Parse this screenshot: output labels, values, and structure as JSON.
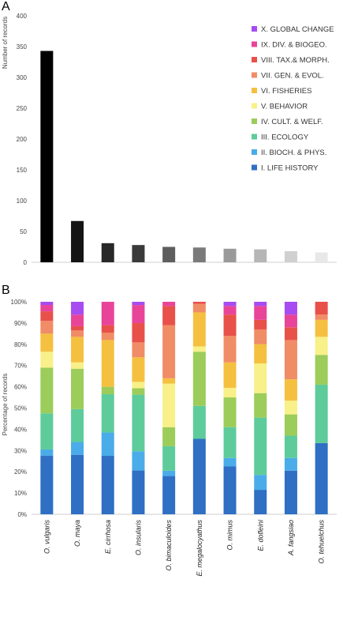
{
  "panels": {
    "a_label": "A",
    "b_label": "B"
  },
  "chart_data": [
    {
      "type": "bar",
      "title": "",
      "xlabel": "",
      "ylabel": "Number of records",
      "ylim": [
        0,
        400
      ],
      "yticks": [
        0,
        50,
        100,
        150,
        200,
        250,
        300,
        350,
        400
      ],
      "grid": false,
      "categories": [
        "O. vulgaris",
        "O. maya",
        "E. cirrhosa",
        "O. insularis",
        "O. bimaculoides",
        "E. megalocyathus",
        "O. mimus",
        "E. dofleini",
        "A. fangsiao",
        "O. tehuelchus"
      ],
      "values": [
        343,
        67,
        31,
        28,
        25,
        24,
        22,
        21,
        18,
        16
      ],
      "bar_colors": [
        "#000000",
        "#141414",
        "#282828",
        "#3a3a3a",
        "#5e5e5e",
        "#7a7a7a",
        "#9a9a9a",
        "#b6b6b6",
        "#d0d0d0",
        "#e8e8e8"
      ],
      "legend": {
        "placement": "top-right",
        "entries": [
          {
            "label": "X. GLOBAL CHANGE",
            "color": "#a64cf0"
          },
          {
            "label": "IX. DIV. & BIOGEO.",
            "color": "#e8459a"
          },
          {
            "label": "VIII. TAX.& MORPH.",
            "color": "#e8504a"
          },
          {
            "label": "VII. GEN. & EVOL.",
            "color": "#f08c66"
          },
          {
            "label": "VI. FISHERIES",
            "color": "#f5c040"
          },
          {
            "label": "V. BEHAVIOR",
            "color": "#f8f088"
          },
          {
            "label": "IV. CULT. & WELF.",
            "color": "#9ccc5a"
          },
          {
            "label": "III. ECOLOGY",
            "color": "#5ecb9b"
          },
          {
            "label": "II. BIOCH. & PHYS.",
            "color": "#4aace8"
          },
          {
            "label": "I. LIFE HISTORY",
            "color": "#2f6fc4"
          }
        ]
      }
    },
    {
      "type": "bar",
      "stacked": true,
      "percent": true,
      "title": "",
      "xlabel": "",
      "ylabel": "Percentage of records",
      "ylim": [
        0,
        100
      ],
      "yticks": [
        "0%",
        "10%",
        "20%",
        "30%",
        "40%",
        "50%",
        "60%",
        "70%",
        "80%",
        "90%",
        "100%"
      ],
      "grid": false,
      "categories": [
        "O. vulgaris",
        "O. maya",
        "E. cirrhosa",
        "O. insularis",
        "O. bimaculoides",
        "E. megalocyathus",
        "O. mimus",
        "E. dofleini",
        "A. fangsiao",
        "O. tehuelchus"
      ],
      "series": [
        {
          "name": "I. LIFE HISTORY",
          "color": "#2f6fc4",
          "values": [
            27.5,
            28,
            27.5,
            20.5,
            18,
            35.5,
            22.5,
            11.5,
            20.5,
            33.5
          ]
        },
        {
          "name": "II. BIOCH. & PHYS.",
          "color": "#4aace8",
          "values": [
            3,
            6,
            11,
            9,
            2.5,
            0,
            4,
            7,
            6,
            0
          ]
        },
        {
          "name": "III. ECOLOGY",
          "color": "#5ecb9b",
          "values": [
            17,
            15.5,
            18,
            26.5,
            11.5,
            15.5,
            14.5,
            27,
            10.5,
            27.5
          ]
        },
        {
          "name": "IV. CULT. & WELF.",
          "color": "#9ccc5a",
          "values": [
            21.5,
            19,
            3.5,
            3,
            9,
            25.5,
            14,
            11.5,
            10,
            14
          ]
        },
        {
          "name": "V. BEHAVIOR",
          "color": "#f8f088",
          "values": [
            7.5,
            3,
            0,
            3,
            20.5,
            2.5,
            4.5,
            14,
            6.5,
            8.5
          ]
        },
        {
          "name": "VI. FISHERIES",
          "color": "#f5c040",
          "values": [
            8.5,
            12,
            22,
            11.5,
            2.5,
            16,
            12,
            9,
            10,
            8
          ]
        },
        {
          "name": "VII. GEN. & EVOL.",
          "color": "#f08c66",
          "values": [
            6,
            3,
            3.5,
            7,
            25,
            4,
            12.5,
            7,
            18.5,
            2.5
          ]
        },
        {
          "name": "VIII. TAX.& MORPH.",
          "color": "#e8504a",
          "values": [
            4.5,
            2,
            3.5,
            9,
            9,
            1,
            10,
            4.5,
            6,
            6
          ]
        },
        {
          "name": "IX. DIV. & BIOGEO.",
          "color": "#e8459a",
          "values": [
            3,
            5.5,
            11,
            8.5,
            2,
            0,
            4,
            6.5,
            6,
            0
          ]
        },
        {
          "name": "X. GLOBAL CHANGE",
          "color": "#a64cf0",
          "values": [
            1.5,
            6,
            0,
            1.5,
            0,
            0,
            2,
            2,
            6,
            0
          ]
        }
      ]
    }
  ]
}
